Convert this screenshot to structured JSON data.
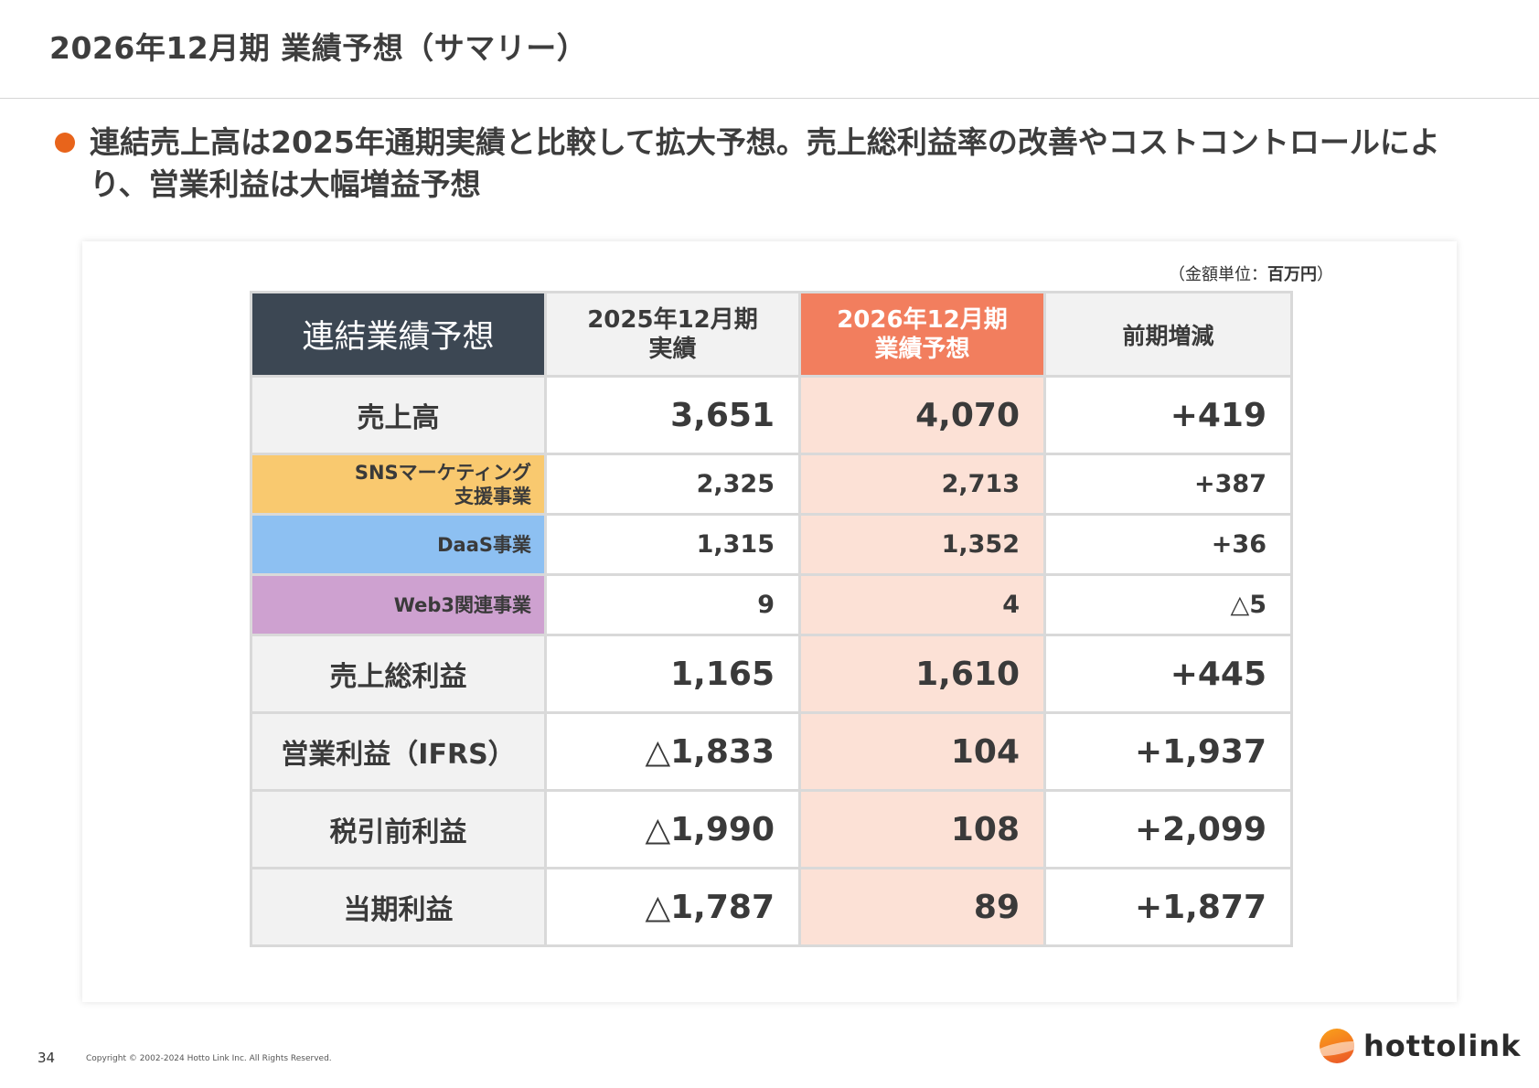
{
  "header": {
    "title": "2026年12月期 業績予想（サマリー）"
  },
  "summary": {
    "headline": "連結売上高は2025年通期実績と比較して拡大予想。売上総利益率の改善やコストコントロールにより、営業利益は大幅増益予想"
  },
  "table": {
    "unit_prefix": "（金額単位：",
    "unit_value": "百万円",
    "unit_suffix": "）",
    "headers": {
      "label": "連結業績予想",
      "actual_2025_line1": "2025年12月期",
      "actual_2025_line2": "実績",
      "forecast_2026_line1": "2026年12月期",
      "forecast_2026_line2": "業績予想",
      "diff": "前期増減"
    },
    "rows": [
      {
        "label": "売上高",
        "actual_2025": "3,651",
        "forecast_2026": "4,070",
        "diff": "+419"
      },
      {
        "label_line1": "SNSマーケティング",
        "label_line2": "支援事業",
        "actual_2025": "2,325",
        "forecast_2026": "2,713",
        "diff": "+387"
      },
      {
        "label": "DaaS事業",
        "actual_2025": "1,315",
        "forecast_2026": "1,352",
        "diff": "+36"
      },
      {
        "label": "Web3関連事業",
        "actual_2025": "9",
        "forecast_2026": "4",
        "diff": "△5"
      },
      {
        "label": "売上総利益",
        "actual_2025": "1,165",
        "forecast_2026": "1,610",
        "diff": "+445"
      },
      {
        "label": "営業利益（IFRS）",
        "actual_2025": "△1,833",
        "forecast_2026": "104",
        "diff": "+1,937"
      },
      {
        "label": "税引前利益",
        "actual_2025": "△1,990",
        "forecast_2026": "108",
        "diff": "+2,099"
      },
      {
        "label": "当期利益",
        "actual_2025": "△1,787",
        "forecast_2026": "89",
        "diff": "+1,877"
      }
    ],
    "colors": {
      "header_dark": "#3c4753",
      "header_forecast": "#f27e5e",
      "forecast_cell": "#fce1d6",
      "segment_sns": "#f9c96f",
      "segment_daas": "#8dc0f2",
      "segment_web3": "#cea1d0"
    }
  },
  "footer": {
    "page_number": "34",
    "copyright": "Copyright © 2002-2024 Hotto Link Inc. All Rights Reserved.",
    "logo_text": "hottolink",
    "logo_icon": "hottolink-logo-icon"
  }
}
